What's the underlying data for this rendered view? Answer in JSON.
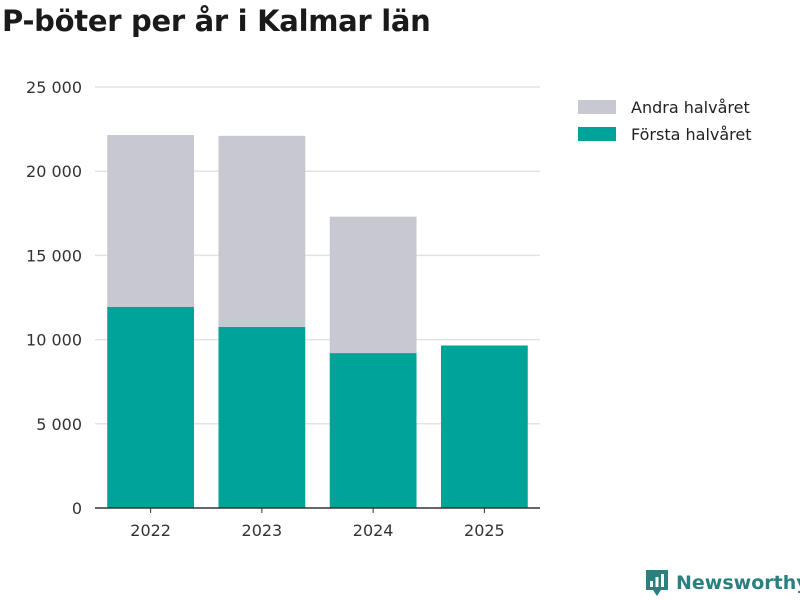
{
  "chart_data": {
    "type": "bar",
    "stacked": true,
    "title": "P-böter per år i Kalmar län",
    "categories": [
      "2022",
      "2023",
      "2024",
      "2025"
    ],
    "series": [
      {
        "name": "Första halvåret",
        "color": "#00a398",
        "values": [
          11950,
          10750,
          9200,
          9650
        ]
      },
      {
        "name": "Andra halvåret",
        "color": "#c8c8d0",
        "values": [
          10200,
          11350,
          8100,
          0
        ]
      }
    ],
    "ylim": [
      0,
      25000
    ],
    "yticks": [
      0,
      5000,
      10000,
      15000,
      20000,
      25000
    ],
    "ytick_labels": [
      "0",
      "5 000",
      "10 000",
      "15 000",
      "20 000",
      "25 000"
    ],
    "legend": [
      "Andra halvåret",
      "Första halvåret"
    ],
    "legend_position": "top-right",
    "xlabel": "",
    "ylabel": "",
    "grid": true
  },
  "brand": {
    "name": "Newsworthy",
    "icon": "newsworthy-logo-icon"
  }
}
